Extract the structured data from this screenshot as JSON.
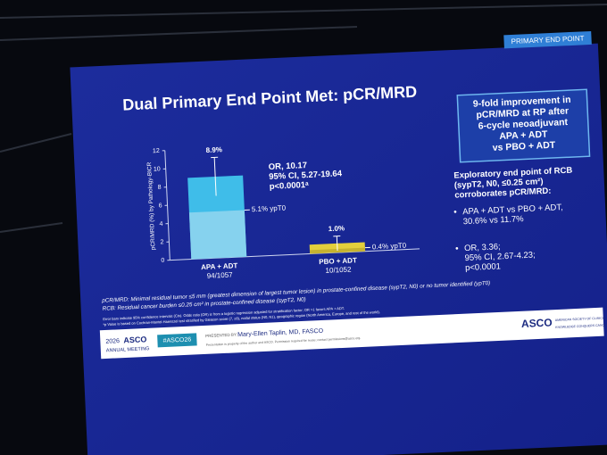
{
  "slide": {
    "tag": "PRIMARY END POINT",
    "title": "Dual Primary End Point Met: pCR/MRD",
    "stats": [
      "OR, 10.17",
      "95% CI, 5.27-19.64",
      "p<0.0001ᵃ"
    ],
    "callout": [
      "9-fold improvement in",
      "pCR/MRD at RP after",
      "6-cycle neoadjuvant",
      "APA + ADT",
      "vs PBO + ADT"
    ],
    "rcb_heading": [
      "Exploratory end point of RCB",
      "(sypT2, N0, ≤0.25 cm²)",
      "corroborates pCR/MRD:"
    ],
    "bullets": [
      [
        "APA + ADT vs PBO + ADT,",
        "30.6% vs 11.7%"
      ],
      [
        "OR, 3.36;",
        "95% CI, 2.67-4.23;",
        "p<0.0001"
      ]
    ],
    "footnotes": [
      "pCR/MRD: Minimal residual tumor ≤5 mm (greatest dimension of largest tumor lesion) in prostate-confined disease (sypT2, N0) or no tumor identified (ypT0)",
      "RCB: Residual cancer burden ≤0.25 cm² in prostate-confined disease (sypT2, N0)"
    ],
    "small_notes": [
      "Error bars indicate 95% confidence intervals (CIs). Odds ratio (OR) is from a logistic regression adjusted for stratification factor; OR >1 favors APA + ADT.",
      "ᵃp Value is based on Cochran-Mantel-Haenszel test stratified by Gleason score (7, ≥8), nodal status (N0, N1), geographic region (North America, Europe, and rest of the world)."
    ],
    "footer": {
      "year": "2026",
      "meeting": "ASCO",
      "meeting_sub": "ANNUAL MEETING",
      "hashtag": "#ASCO26",
      "presented_by": "PRESENTED BY:",
      "presenter": "Mary-Ellen Taplin, MD, FASCO",
      "notice": "Presentation is property of the author and ASCO. Permission required for reuse; contact permissions@asco.org.",
      "logo": "ASCO",
      "logo_sub1": "AMERICAN SOCIETY OF CLINICAL ONCOLOGY",
      "logo_sub2": "KNOWLEDGE CONQUERS CANCER"
    }
  },
  "chart_data": {
    "type": "bar",
    "ylabel": "pCR/MRD (%) by Pathology-BICR",
    "categories": [
      "APA + ADT",
      "PBO + ADT"
    ],
    "category_sublabels": [
      "94/1057",
      "10/1052"
    ],
    "values": [
      8.9,
      1.0
    ],
    "value_labels": [
      "8.9%",
      "1.0%"
    ],
    "errors": [
      2.1,
      0.8
    ],
    "colors": [
      "#3fbde9",
      "#e3cf3c"
    ],
    "ypt0": {
      "values": [
        5.1,
        0.4
      ],
      "value_labels": [
        "5.1% ypT0",
        "0.4% ypT0"
      ],
      "colors": [
        "#86d2ee",
        "#c5b230"
      ]
    },
    "ylim": [
      0,
      12
    ],
    "yticks": [
      0,
      2,
      4,
      6,
      8,
      10,
      12
    ]
  }
}
